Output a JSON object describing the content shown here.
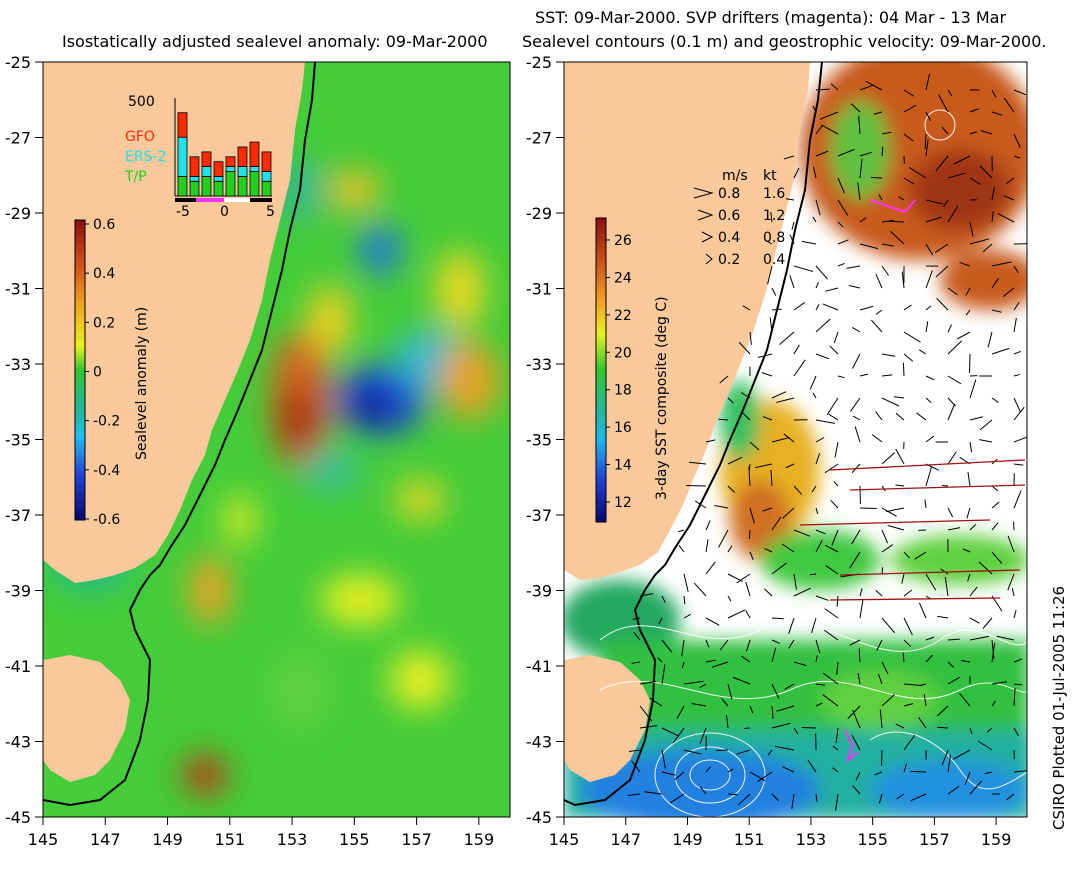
{
  "left_panel": {
    "title": "Isostatically adjusted sealevel anomaly: 09-Mar-2000",
    "colorbar": {
      "label": "Sealevel anomaly (m)",
      "ticks": [
        "0.6",
        "0.4",
        "0.2",
        "0",
        "-0.2",
        "-0.4",
        "-0.6"
      ]
    },
    "inset": {
      "y_label": "500",
      "x_ticks": [
        "-5",
        "0",
        "5"
      ],
      "legend": [
        {
          "name": "GFO",
          "color": "#ff2a00"
        },
        {
          "name": "ERS-2",
          "color": "#20e0e8"
        },
        {
          "name": "T/P",
          "color": "#20d020"
        }
      ],
      "bars": [
        {
          "tp": 0.2,
          "ers": 0.4,
          "gfo": 0.25
        },
        {
          "tp": 0.15,
          "ers": 0.05,
          "gfo": 0.2
        },
        {
          "tp": 0.2,
          "ers": 0.1,
          "gfo": 0.15
        },
        {
          "tp": 0.15,
          "ers": 0.05,
          "gfo": 0.15
        },
        {
          "tp": 0.25,
          "ers": 0.05,
          "gfo": 0.1
        },
        {
          "tp": 0.2,
          "ers": 0.1,
          "gfo": 0.2
        },
        {
          "tp": 0.25,
          "ers": 0.05,
          "gfo": 0.25
        },
        {
          "tp": 0.15,
          "ers": 0.1,
          "gfo": 0.2
        }
      ]
    }
  },
  "right_panel": {
    "title_line1": "SST: 09-Mar-2000. SVP drifters (magenta): 04 Mar - 13 Mar",
    "title_line2": "Sealevel contours (0.1 m) and geostrophic velocity: 09-Mar-2000.",
    "colorbar": {
      "label": "3-day SST composite (deg C)",
      "ticks": [
        "26",
        "24",
        "22",
        "20",
        "18",
        "16",
        "14",
        "12"
      ]
    },
    "velocity_key": {
      "header_ms": "m/s",
      "header_kt": "kt",
      "rows": [
        {
          "ms": "0.8",
          "kt": "1.6"
        },
        {
          "ms": "0.6",
          "kt": "1.2"
        },
        {
          "ms": "0.4",
          "kt": "0.8"
        },
        {
          "ms": "0.2",
          "kt": "0.4"
        }
      ]
    }
  },
  "axes": {
    "y_ticks": [
      "-25",
      "-27",
      "-29",
      "-31",
      "-33",
      "-35",
      "-37",
      "-39",
      "-41",
      "-43",
      "-45"
    ],
    "x_ticks": [
      "145",
      "147",
      "149",
      "151",
      "153",
      "155",
      "157",
      "159"
    ]
  },
  "stamp": "CSIRO Plotted 01-Jul-2005 11:26",
  "colors": {
    "land": "#f9c99b",
    "ocean_green": "#3fcf3a",
    "sst_white": "#ffffff"
  }
}
